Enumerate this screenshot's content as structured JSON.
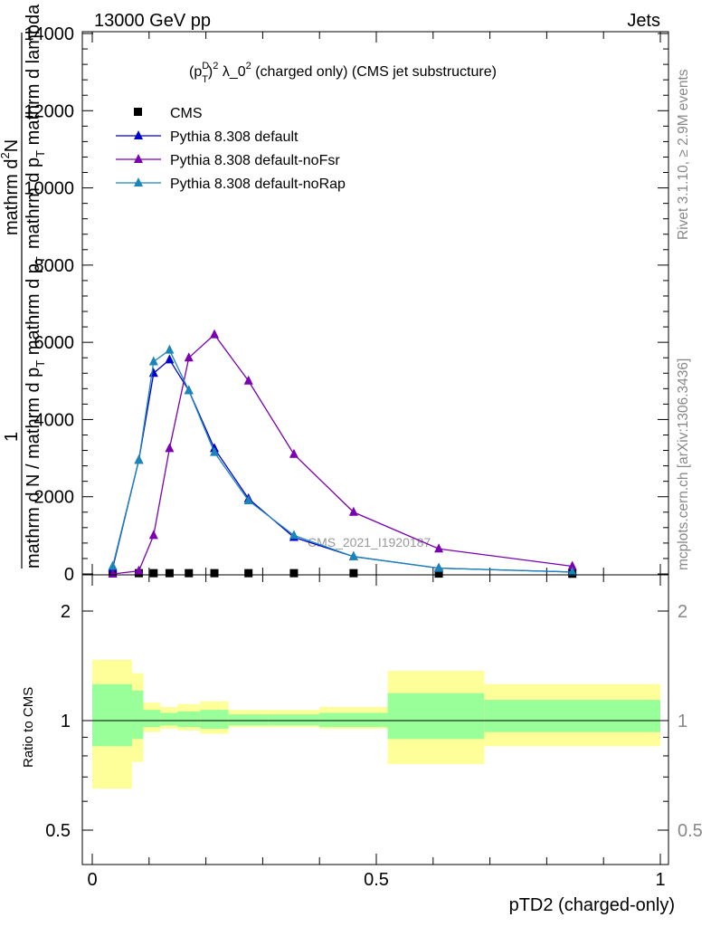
{
  "header": {
    "left": "13000 GeV pp",
    "right": "Jets",
    "side_rivet": "Rivet 3.1.10, ≥ 2.9M events",
    "side_mcplots": "mcplots.cern.ch [arXiv:1306.3436]"
  },
  "legend": {
    "title": "(p_T^D)^2 λ_0^2 (charged only) (CMS jet substructure)",
    "title_parts": {
      "p": "(p",
      "sup_d": "D",
      "sub_t": "T",
      "close": ")",
      "sup_2a": "2",
      "mid": " λ_0",
      "sup_2b": "2",
      "rest": " (charged only) (CMS jet substructure)"
    }
  },
  "watermark": "CMS_2021_I1920187",
  "colors": {
    "cms": "#000000",
    "default": "#0000cc",
    "noFsr": "#7a00b0",
    "noRap": "#1a86b8",
    "band_outer": "#ffff99",
    "band_inner": "#99ff99"
  },
  "chart_data": [
    {
      "type": "line",
      "title": "",
      "ylabel_parts": {
        "num": "1",
        "den": "mathrm d N / mathrm d p",
        "den_sub": "T",
        "den_rest": " mathrm d p",
        "den_sub2": "T",
        "num2": "mathrm d",
        "num2_sup": "2",
        "num2_rest": "N",
        "den2": "mathrm d p",
        "den2_sub": "T",
        "den2_rest": " mathrm d lambda"
      },
      "xlim": [
        -0.02,
        1.0
      ],
      "ylim": [
        0,
        14000
      ],
      "yticks": [
        0,
        2000,
        4000,
        6000,
        8000,
        10000,
        12000,
        14000
      ],
      "ytick_labels": [
        "0",
        "2000",
        "4000",
        "6000",
        "8000",
        "10000",
        "12000",
        "14000"
      ],
      "legend_position": "top-left",
      "series": [
        {
          "name": "CMS",
          "color_key": "cms",
          "marker": "square",
          "x": [
            0.036,
            0.082,
            0.108,
            0.136,
            0.17,
            0.215,
            0.275,
            0.355,
            0.46,
            0.61,
            0.845
          ],
          "values": [
            20,
            20,
            20,
            20,
            20,
            20,
            20,
            20,
            20,
            10,
            5
          ]
        },
        {
          "name": "Pythia 8.308 default",
          "color_key": "default",
          "marker": "triangle",
          "x": [
            0.036,
            0.082,
            0.108,
            0.136,
            0.17,
            0.215,
            0.275,
            0.355,
            0.46,
            0.61,
            0.845
          ],
          "values": [
            150,
            2950,
            5200,
            5550,
            4750,
            3250,
            1950,
            950,
            450,
            150,
            50
          ]
        },
        {
          "name": "Pythia 8.308 default-noFsr",
          "color_key": "noFsr",
          "marker": "triangle",
          "x": [
            0.036,
            0.082,
            0.108,
            0.136,
            0.17,
            0.215,
            0.275,
            0.355,
            0.46,
            0.61,
            0.845
          ],
          "values": [
            0,
            80,
            1000,
            3250,
            5600,
            6200,
            5000,
            3100,
            1600,
            650,
            200
          ]
        },
        {
          "name": "Pythia 8.308 default-noRap",
          "color_key": "noRap",
          "marker": "triangle",
          "x": [
            0.036,
            0.082,
            0.108,
            0.136,
            0.17,
            0.215,
            0.275,
            0.355,
            0.46,
            0.61,
            0.845
          ],
          "values": [
            200,
            2950,
            5500,
            5800,
            4750,
            3150,
            1900,
            1000,
            450,
            150,
            50
          ]
        }
      ]
    },
    {
      "type": "area",
      "ylabel": "Ratio to CMS",
      "xlabel": "pTD2 (charged-only)",
      "xlim": [
        -0.02,
        1.0
      ],
      "ylim": [
        0.35,
        2.25
      ],
      "xticks": [
        0,
        0.5,
        1
      ],
      "xtick_labels": [
        "0",
        "0.5",
        "1"
      ],
      "yticks_labeled": [
        0.5,
        1,
        2
      ],
      "ytick_labels": [
        "0.5",
        "1",
        "2"
      ],
      "bins": [
        {
          "lo": 0.0,
          "hi": 0.07,
          "inner": [
            0.85,
            1.26
          ],
          "outer": [
            0.65,
            1.47
          ]
        },
        {
          "lo": 0.07,
          "hi": 0.09,
          "inner": [
            0.89,
            1.21
          ],
          "outer": [
            0.77,
            1.35
          ]
        },
        {
          "lo": 0.09,
          "hi": 0.12,
          "inner": [
            0.96,
            1.07
          ],
          "outer": [
            0.93,
            1.12
          ]
        },
        {
          "lo": 0.12,
          "hi": 0.15,
          "inner": [
            0.97,
            1.05
          ],
          "outer": [
            0.95,
            1.09
          ]
        },
        {
          "lo": 0.15,
          "hi": 0.19,
          "inner": [
            0.96,
            1.06
          ],
          "outer": [
            0.94,
            1.11
          ]
        },
        {
          "lo": 0.19,
          "hi": 0.24,
          "inner": [
            0.95,
            1.07
          ],
          "outer": [
            0.92,
            1.13
          ]
        },
        {
          "lo": 0.24,
          "hi": 0.31,
          "inner": [
            0.97,
            1.04
          ],
          "outer": [
            0.96,
            1.07
          ]
        },
        {
          "lo": 0.31,
          "hi": 0.4,
          "inner": [
            0.97,
            1.04
          ],
          "outer": [
            0.96,
            1.07
          ]
        },
        {
          "lo": 0.4,
          "hi": 0.52,
          "inner": [
            0.96,
            1.05
          ],
          "outer": [
            0.95,
            1.09
          ]
        },
        {
          "lo": 0.52,
          "hi": 0.69,
          "inner": [
            0.89,
            1.19
          ],
          "outer": [
            0.76,
            1.37
          ]
        },
        {
          "lo": 0.69,
          "hi": 1.0,
          "inner": [
            0.93,
            1.14
          ],
          "outer": [
            0.85,
            1.26
          ]
        }
      ]
    }
  ]
}
